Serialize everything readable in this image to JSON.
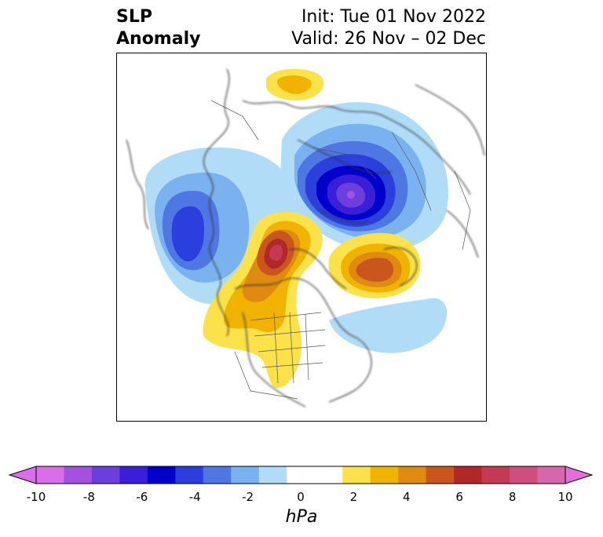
{
  "title": {
    "left_line1": "SLP",
    "left_line2": "Anomaly",
    "right_line1": "Init: Tue 01 Nov 2022",
    "right_line2": "Valid: 26 Nov – 02 Dec"
  },
  "colorbar": {
    "unit": "hPa",
    "ticks": [
      "-10",
      "-8",
      "-6",
      "-4",
      "-2",
      "0",
      "2",
      "4",
      "6",
      "8",
      "10"
    ],
    "colors": [
      "#d96ee8",
      "#a352e0",
      "#6a3fdc",
      "#3a1fd6",
      "#0000cc",
      "#2a3fdc",
      "#4f77e4",
      "#7ab2f0",
      "#b0dcf8",
      "#ffffff",
      "#ffffff",
      "#fbe14a",
      "#f0b400",
      "#df8a10",
      "#c9561c",
      "#b02828",
      "#c43a55",
      "#cc4f7e",
      "#d766aa"
    ],
    "end_low": "#d96ee8",
    "end_high": "#e56fd8"
  },
  "map": {
    "projection": "north-polar-stereographic",
    "features": [
      "coastlines",
      "country-borders",
      "state-province-borders"
    ]
  }
}
